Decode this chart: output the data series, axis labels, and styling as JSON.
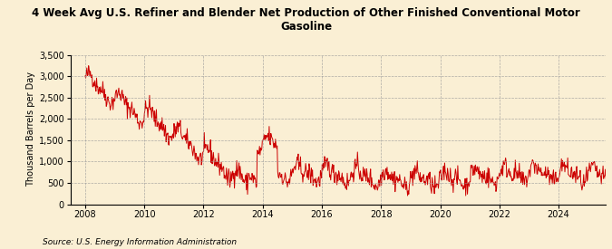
{
  "title": "4 Week Avg U.S. Refiner and Blender Net Production of Other Finished Conventional Motor\nGasoline",
  "ylabel": "Thousand Barrels per Day",
  "source": "Source: U.S. Energy Information Administration",
  "line_color": "#cc0000",
  "background_color": "#faefd4",
  "grid_color": "#999999",
  "ylim": [
    0,
    3500
  ],
  "yticks": [
    0,
    500,
    1000,
    1500,
    2000,
    2500,
    3000,
    3500
  ],
  "xlim_start": 2007.5,
  "xlim_end": 2025.6,
  "xticks": [
    2008,
    2010,
    2012,
    2014,
    2016,
    2018,
    2020,
    2022,
    2024
  ]
}
